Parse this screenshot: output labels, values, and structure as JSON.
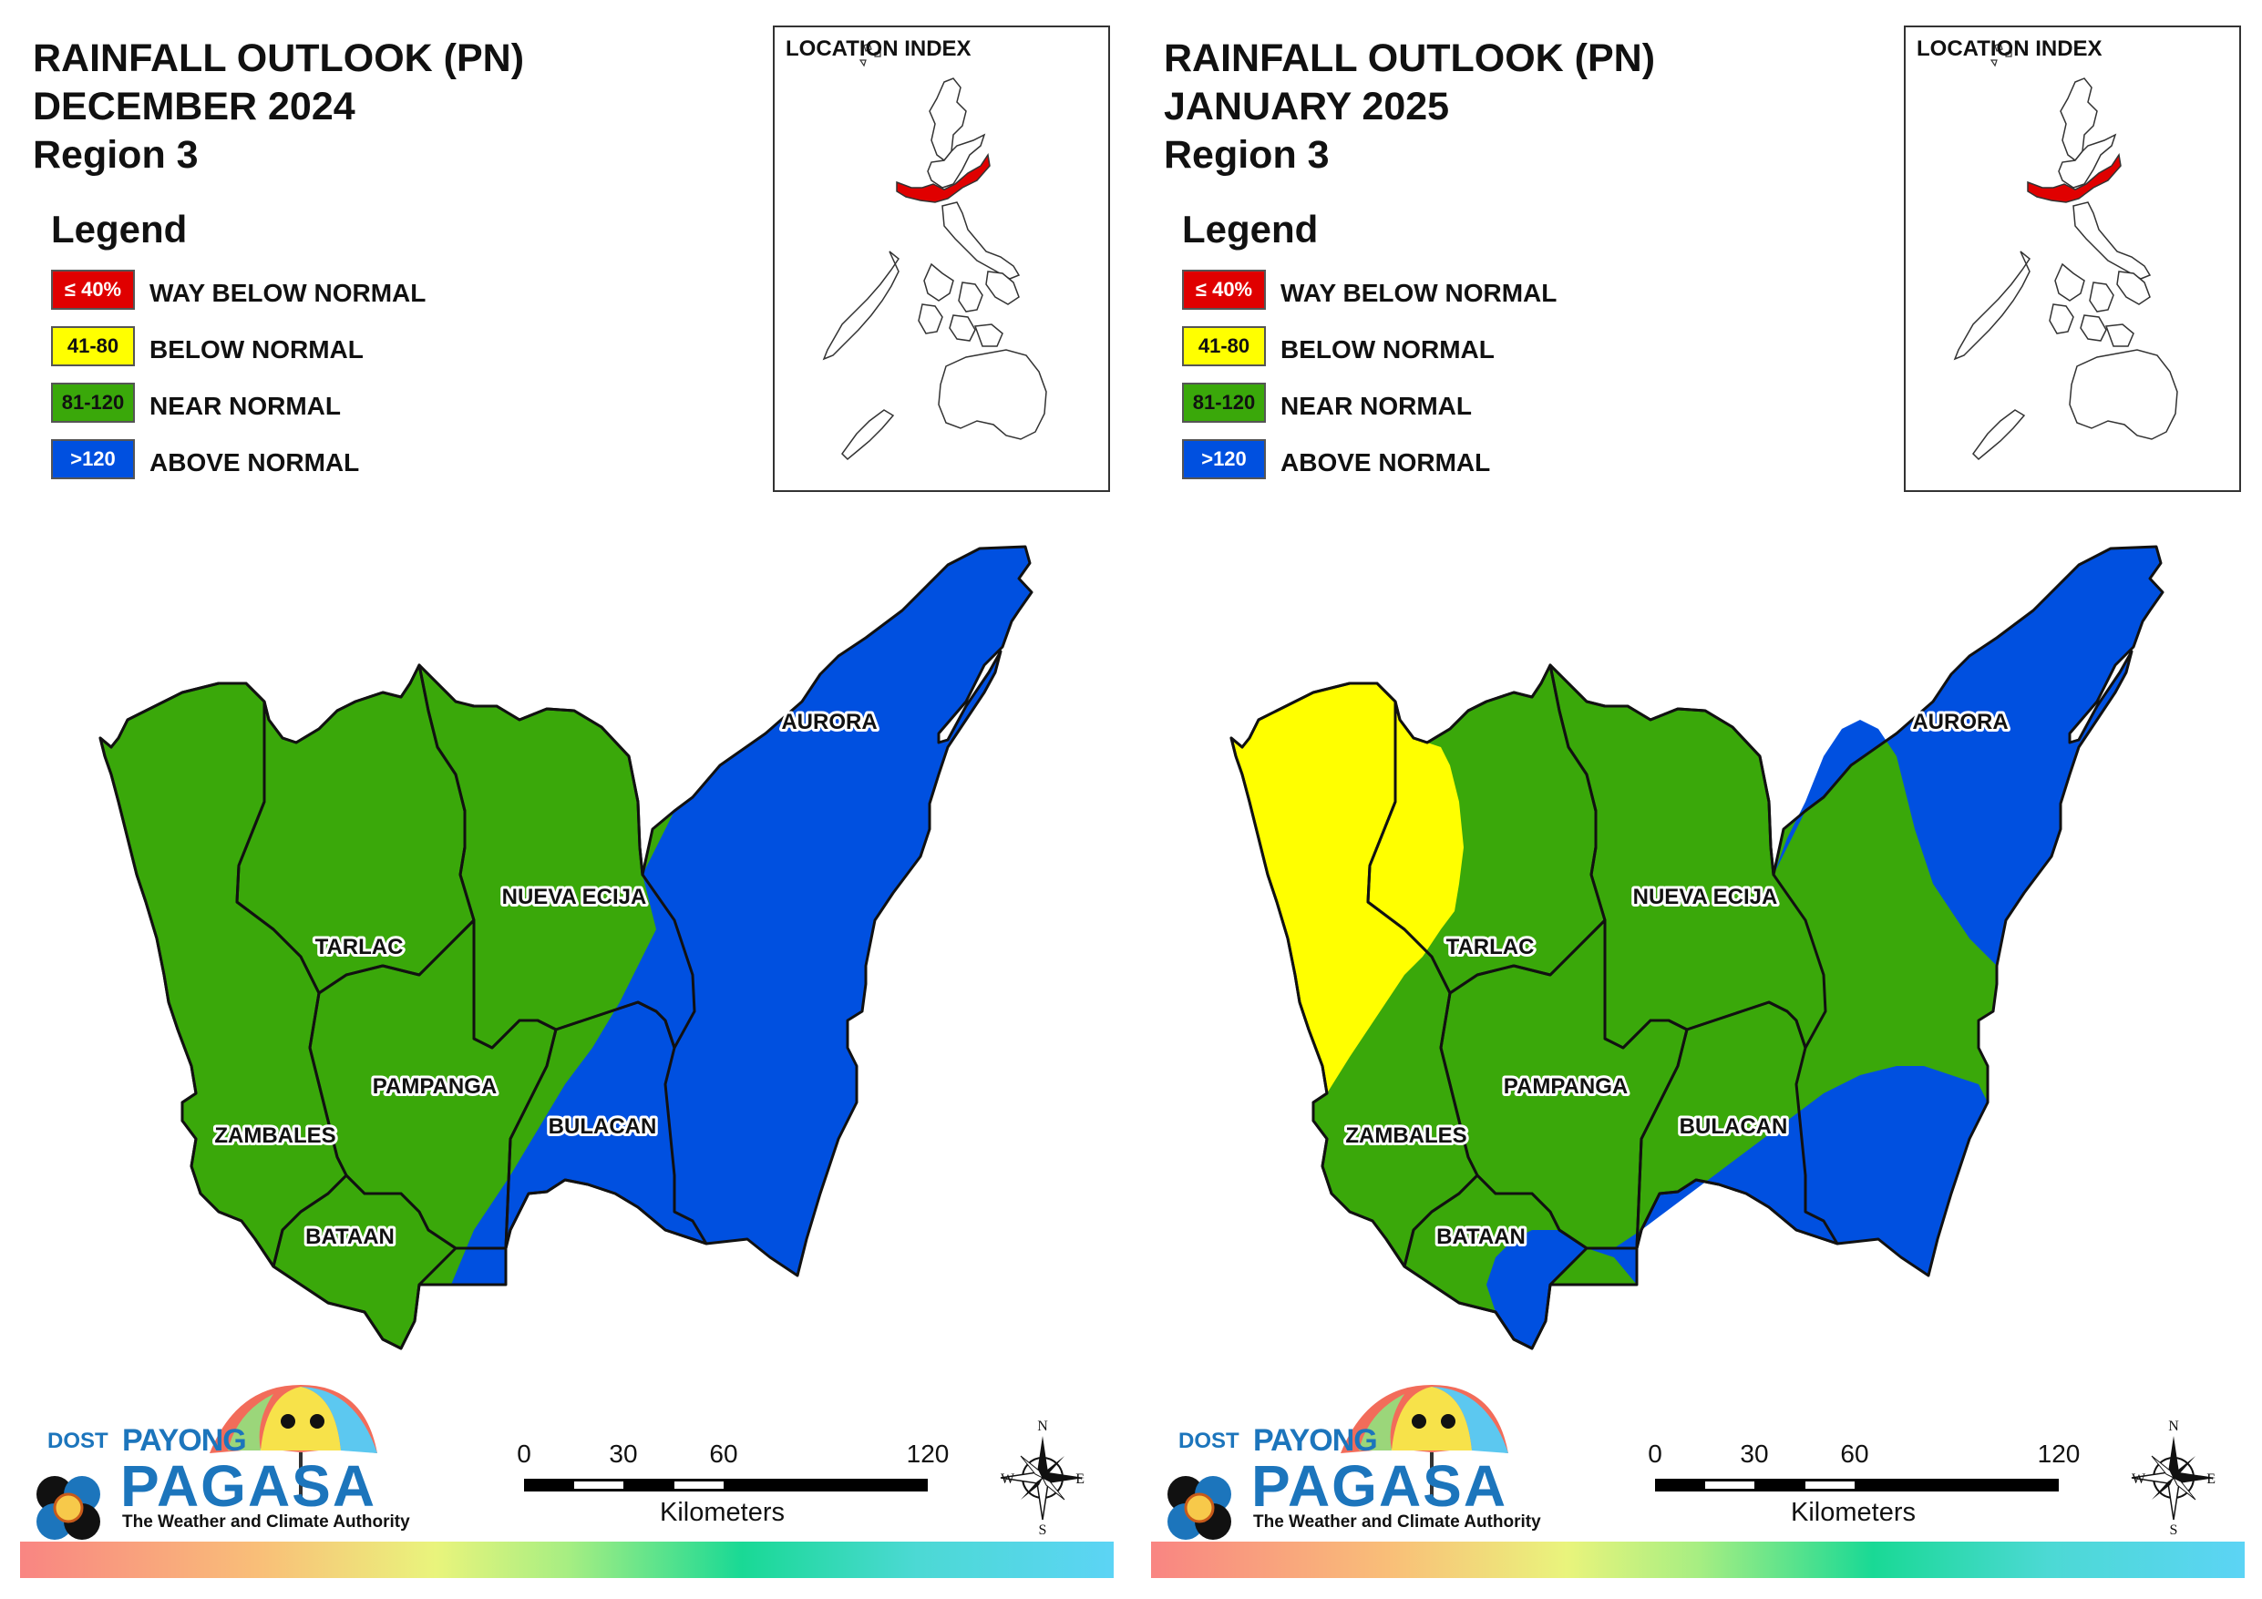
{
  "panels": [
    {
      "title_lines": [
        "RAINFALL OUTLOOK (PN)",
        "DECEMBER 2024",
        "Region 3"
      ],
      "legend_title": "Legend",
      "legend": [
        {
          "range": "≤ 40%",
          "label": "WAY BELOW NORMAL",
          "color": "#e00000",
          "text_color": "#ffffff"
        },
        {
          "range": "41-80",
          "label": "BELOW NORMAL",
          "color": "#ffff00",
          "text_color": "#111111"
        },
        {
          "range": "81-120",
          "label": "NEAR NORMAL",
          "color": "#3aa80a",
          "text_color": "#111111"
        },
        {
          "range": ">120",
          "label": "ABOVE NORMAL",
          "color": "#0050e0",
          "text_color": "#ffffff"
        }
      ],
      "inset_title": "LOCATION INDEX",
      "provinces": [
        {
          "name": "AURORA",
          "category": "ABOVE NORMAL"
        },
        {
          "name": "NUEVA ECIJA",
          "category": "NEAR NORMAL / ABOVE NORMAL (east)"
        },
        {
          "name": "TARLAC",
          "category": "NEAR NORMAL"
        },
        {
          "name": "PAMPANGA",
          "category": "NEAR NORMAL"
        },
        {
          "name": "BULACAN",
          "category": "ABOVE NORMAL"
        },
        {
          "name": "ZAMBALES",
          "category": "NEAR NORMAL"
        },
        {
          "name": "BATAAN",
          "category": "NEAR NORMAL"
        }
      ],
      "scale": {
        "ticks": [
          "0",
          "30",
          "60",
          "120"
        ],
        "unit": "Kilometers"
      },
      "compass": {
        "n": "N",
        "s": "S",
        "e": "E",
        "w": "W"
      },
      "logo": {
        "dost": "DOST",
        "payong": "PAYONG",
        "pagasa": "PAGASA",
        "tagline": "The Weather and Climate Authority"
      }
    },
    {
      "title_lines": [
        "RAINFALL OUTLOOK (PN)",
        "JANUARY 2025",
        "Region 3"
      ],
      "legend_title": "Legend",
      "legend": [
        {
          "range": "≤ 40%",
          "label": "WAY BELOW NORMAL",
          "color": "#e00000",
          "text_color": "#ffffff"
        },
        {
          "range": "41-80",
          "label": "BELOW NORMAL",
          "color": "#ffff00",
          "text_color": "#111111"
        },
        {
          "range": "81-120",
          "label": "NEAR NORMAL",
          "color": "#3aa80a",
          "text_color": "#111111"
        },
        {
          "range": ">120",
          "label": "ABOVE NORMAL",
          "color": "#0050e0",
          "text_color": "#ffffff"
        }
      ],
      "inset_title": "LOCATION INDEX",
      "provinces": [
        {
          "name": "AURORA",
          "category": "ABOVE NORMAL"
        },
        {
          "name": "NUEVA ECIJA",
          "category": "NEAR NORMAL"
        },
        {
          "name": "TARLAC",
          "category": "BELOW NORMAL / NEAR NORMAL"
        },
        {
          "name": "PAMPANGA",
          "category": "NEAR NORMAL / ABOVE NORMAL (south)"
        },
        {
          "name": "BULACAN",
          "category": "ABOVE NORMAL / NEAR NORMAL (north)"
        },
        {
          "name": "ZAMBALES",
          "category": "BELOW NORMAL / NEAR NORMAL (south)"
        },
        {
          "name": "BATAAN",
          "category": "ABOVE NORMAL / NEAR NORMAL (north)"
        }
      ],
      "scale": {
        "ticks": [
          "0",
          "30",
          "60",
          "120"
        ],
        "unit": "Kilometers"
      },
      "compass": {
        "n": "N",
        "s": "S",
        "e": "E",
        "w": "W"
      },
      "logo": {
        "dost": "DOST",
        "payong": "PAYONG",
        "pagasa": "PAGASA",
        "tagline": "The Weather and Climate Authority"
      }
    }
  ]
}
